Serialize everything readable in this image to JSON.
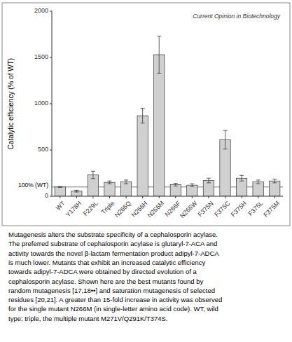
{
  "chart_data": {
    "type": "bar",
    "categories": [
      "WT",
      "Y178H",
      "F229L",
      "Triple",
      "N266Q",
      "N266H",
      "N266M",
      "N266F",
      "N266W",
      "F375N",
      "F375C",
      "F375H",
      "F375L",
      "F375M"
    ],
    "values": [
      100,
      55,
      230,
      150,
      155,
      870,
      1530,
      125,
      120,
      170,
      610,
      195,
      155,
      165
    ],
    "errors": [
      5,
      10,
      40,
      15,
      20,
      80,
      200,
      15,
      15,
      25,
      100,
      30,
      20,
      20
    ],
    "color": "#d0d0d0",
    "ylabel": "Catalytic efficiency (% of WT)",
    "ylim": [
      0,
      2000
    ],
    "yticks": [
      0,
      500,
      1000,
      1500,
      2000
    ],
    "grid": false,
    "reference_line": {
      "value": 100,
      "label": "100% (WT)"
    },
    "source": "Current Opinion in Biotechnology",
    "caption": [
      "Mutagenesis alters the substrate specificity of a cephalosporin acylase.",
      "The preferred substrate of cephalosporin acylase is glutaryl-7-ACA and",
      "activity towards the novel β-lactam fermentation product adipyl-7-ADCA",
      "is much lower. Mutants that exhibit an increased catalytic efficiency",
      "towards adipyl-7-ADCA were obtained by directed evolution of a",
      "cephalosporin acylase. Shown here are the best mutants found by",
      "random mutagenesis [17,18••] and saturation mutagenesis of selected",
      "residues [20,21]. A greater than 15-fold increase in activity was observed",
      "for the single mutant N266M (in single-letter amino acid code). WT, wild",
      "type; triple, the multiple mutant M271V/Q291K/T374S."
    ]
  }
}
